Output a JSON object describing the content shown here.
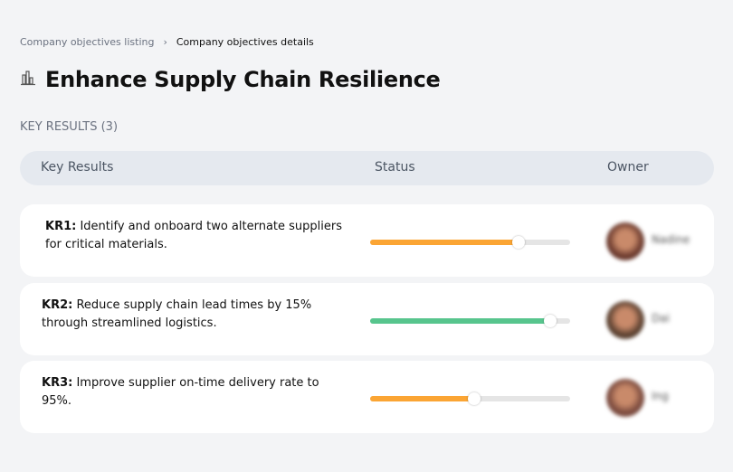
{
  "breadcrumb": {
    "items": [
      "Company objectives listing",
      "Company objectives details"
    ],
    "separator": "›"
  },
  "page": {
    "title": "Enhance Supply Chain Resilience",
    "icon": "buildings-icon"
  },
  "key_results_heading": "KEY RESULTS (3)",
  "table": {
    "headers": {
      "key_results": "Key Results",
      "status": "Status",
      "owner": "Owner"
    },
    "rows": [
      {
        "id": "KR1:",
        "text": " Identify and onboard two alternate suppliers for critical materials.",
        "progress": 74,
        "color": "#fba534",
        "owner": "Nadine",
        "avatar_color": "#6b3a2e"
      },
      {
        "id": "KR2:",
        "text": " Reduce supply chain lead times by 15% through streamlined logistics.",
        "progress": 90,
        "color": "#57c58d",
        "owner": "Dai",
        "avatar_color": "#5a4030"
      },
      {
        "id": "KR3:",
        "text": " Improve supplier on-time delivery rate to 95%.",
        "progress": 52,
        "color": "#fba534",
        "owner": "Ing",
        "avatar_color": "#7a4a3e"
      }
    ]
  }
}
